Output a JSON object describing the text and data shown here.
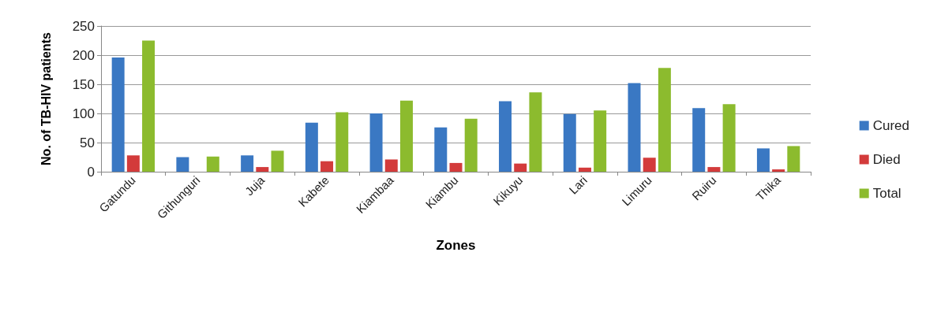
{
  "chart_data": {
    "type": "bar",
    "xlabel": "Zones",
    "ylabel": "No. of TB-HIV patients",
    "categories": [
      "Gatundu",
      "Githunguri",
      "Juja",
      "Kabete",
      "Kiambaa",
      "Kiambu",
      "Kikuyu",
      "Lari",
      "Limuru",
      "Ruiru",
      "Thika"
    ],
    "series": [
      {
        "name": "Cured",
        "color": "#3a78c3",
        "values": [
          196,
          25,
          28,
          84,
          100,
          76,
          121,
          99,
          152,
          109,
          40
        ]
      },
      {
        "name": "Died",
        "color": "#d33b3b",
        "values": [
          28,
          0,
          8,
          18,
          21,
          15,
          14,
          7,
          24,
          8,
          4
        ]
      },
      {
        "name": "Total",
        "color": "#8cbb2e",
        "values": [
          225,
          26,
          36,
          102,
          122,
          91,
          136,
          105,
          178,
          116,
          44
        ]
      }
    ],
    "ylim": [
      0,
      250
    ],
    "yticks": [
      0,
      50,
      100,
      150,
      200,
      250
    ],
    "grid": "y",
    "legend": "right"
  }
}
